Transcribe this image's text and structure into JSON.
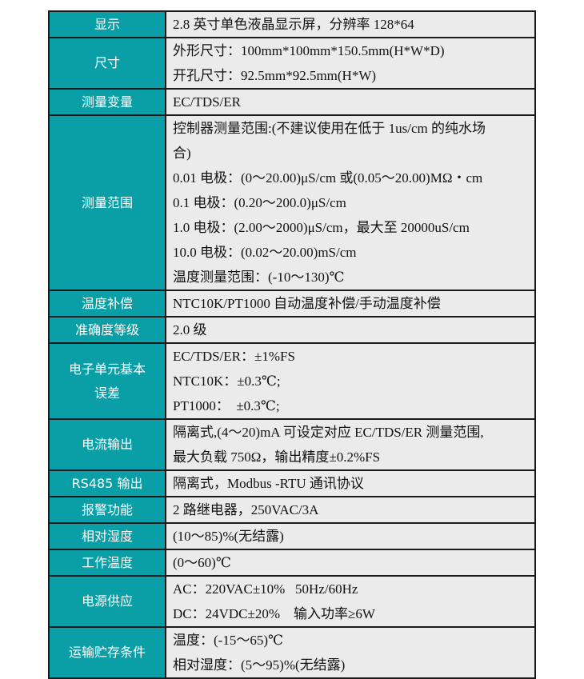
{
  "rows": [
    {
      "label": "显示",
      "lines": [
        "2.8 英寸单色液晶显示屏，分辨率 128*64"
      ]
    },
    {
      "label": "尺寸",
      "lines": [
        "外形尺寸：100mm*100mm*150.5mm(H*W*D)",
        "开孔尺寸：92.5mm*92.5mm(H*W)"
      ]
    },
    {
      "label": "测量变量",
      "lines": [
        "EC/TDS/ER"
      ]
    },
    {
      "label": "测量范围",
      "lines": [
        "控制器测量范围:(不建议使用在低于 1us/cm 的纯水场",
        "合)",
        "0.01 电极：(0～20.00)μS/cm 或(0.05～20.00)MΩ・cm",
        "0.1 电极：(0.20～200.0)μS/cm",
        "1.0 电极：(2.00～2000)μS/cm，最大至 20000uS/cm",
        "10.0 电极：(0.02～20.00)mS/cm",
        "温度测量范围：(-10～130)℃"
      ]
    },
    {
      "label": "温度补偿",
      "lines": [
        "NTC10K/PT1000 自动温度补偿/手动温度补偿"
      ]
    },
    {
      "label": "准确度等级",
      "lines": [
        "2.0 级"
      ]
    },
    {
      "label": "电子单元基本误差",
      "label_lines": [
        "电子单元基本",
        "误差"
      ],
      "lines": [
        "EC/TDS/ER：±1%FS",
        "NTC10K：±0.3℃;",
        "PT1000：  ±0.3℃;"
      ]
    },
    {
      "label": "电流输出",
      "lines": [
        "隔离式,(4～20)mA 可设定对应 EC/TDS/ER 测量范围,",
        "最大负载 750Ω，输出精度±0.2%FS"
      ]
    },
    {
      "label": "RS485 输出",
      "lines": [
        "隔离式，Modbus -RTU 通讯协议"
      ]
    },
    {
      "label": "报警功能",
      "lines": [
        "2 路继电器，250VAC/3A"
      ]
    },
    {
      "label": "相对湿度",
      "lines": [
        "(10～85)%(无结露)"
      ]
    },
    {
      "label": "工作温度",
      "lines": [
        "(0～60)℃"
      ]
    },
    {
      "label": "电源供应",
      "lines": [
        "AC：220VAC±10%   50Hz/60Hz",
        "DC：24VDC±20%    输入功率≥6W"
      ]
    },
    {
      "label": "运输贮存条件",
      "lines": [
        "温度：(-15～65)℃",
        "相对湿度：(5～95)%(无结露)"
      ]
    }
  ],
  "colors": {
    "label_bg": "#0a9ea6",
    "value_bg": "#ebebeb",
    "border": "#1a1a1a"
  }
}
